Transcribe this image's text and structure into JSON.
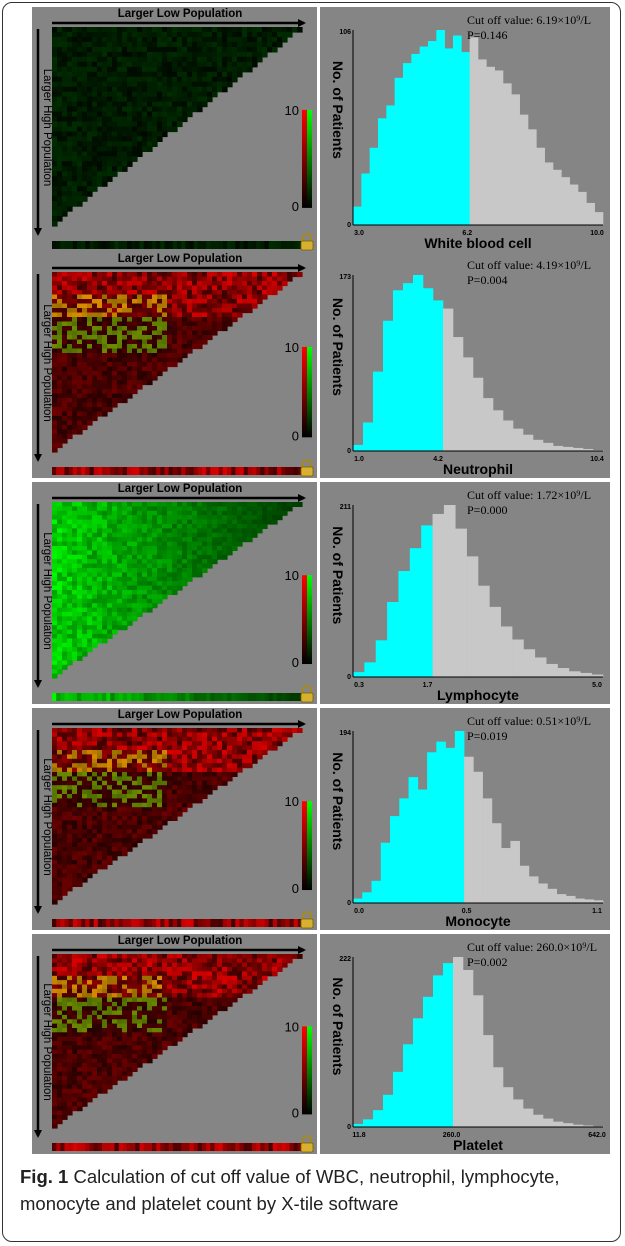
{
  "caption": {
    "label": "Fig. 1",
    "text": "Calculation of cut off value of WBC, neutrophil, lymphocyte, monocyte and platelet count by X-tile software"
  },
  "xtile_labels": {
    "top": "Larger Low Population",
    "left": "Larger High Population",
    "legend_max": "10",
    "legend_min": "0"
  },
  "colors": {
    "background": "#858585",
    "below_cutoff": "#00ffff",
    "above_cutoff": "#c8c8c8",
    "legend_high": "#ff0000",
    "legend_low": "#00ff00"
  },
  "chart_data": [
    {
      "type": "bar",
      "title": "White blood cell",
      "ylabel": "No. of Patients",
      "ymax_label": "106",
      "ymin_label": "0",
      "xticks": [
        "3.0",
        "6.2",
        "10.0"
      ],
      "xrange": [
        3.0,
        10.0
      ],
      "ymax": 106,
      "cutoff": 6.2,
      "annotation_lines": [
        "Cut off value: 6.19×10⁹/L",
        "P=0.146"
      ],
      "heat_color": "dark",
      "values": [
        10,
        28,
        42,
        58,
        65,
        80,
        88,
        93,
        97,
        100,
        106,
        96,
        103,
        94,
        102,
        90,
        86,
        84,
        77,
        71,
        60,
        52,
        42,
        34,
        30,
        26,
        22,
        18,
        12,
        7
      ]
    },
    {
      "type": "bar",
      "title": "Neutrophil",
      "ylabel": "No. of Patients",
      "ymax_label": "173",
      "ymin_label": "0",
      "xticks": [
        "1.0",
        "4.2",
        "10.4"
      ],
      "xrange": [
        1.0,
        10.4
      ],
      "ymax": 173,
      "cutoff": 4.2,
      "annotation_lines": [
        "Cut off value: 4.19×10⁹/L",
        "P=0.004"
      ],
      "heat_color": "red",
      "values": [
        6,
        28,
        78,
        128,
        158,
        165,
        173,
        160,
        148,
        140,
        112,
        92,
        72,
        52,
        40,
        30,
        22,
        16,
        11,
        8,
        5,
        4,
        3,
        2,
        1
      ]
    },
    {
      "type": "bar",
      "title": "Lymphocyte",
      "ylabel": "No. of Patients",
      "ymax_label": "211",
      "ymin_label": "0",
      "xticks": [
        "0.3",
        "1.7",
        "5.0"
      ],
      "xrange": [
        0.3,
        5.0
      ],
      "ymax": 211,
      "cutoff": 1.7,
      "annotation_lines": [
        "Cut off value: 1.72×10⁹/L",
        "P=0.000"
      ],
      "heat_color": "green",
      "values": [
        6,
        18,
        45,
        92,
        130,
        158,
        186,
        200,
        211,
        182,
        148,
        112,
        86,
        62,
        46,
        34,
        24,
        16,
        11,
        7,
        5,
        3
      ]
    },
    {
      "type": "bar",
      "title": "Monocyte",
      "ylabel": "No. of Patients",
      "ymax_label": "194",
      "ymin_label": "0",
      "xticks": [
        "0.0",
        "0.5",
        "1.1"
      ],
      "xrange": [
        0.0,
        1.1
      ],
      "ymax": 194,
      "cutoff": 0.5,
      "annotation_lines": [
        "Cut off value: 0.51×10⁹/L",
        "P=0.019"
      ],
      "heat_color": "red",
      "values": [
        5,
        12,
        25,
        68,
        98,
        118,
        142,
        128,
        170,
        182,
        175,
        194,
        165,
        148,
        118,
        90,
        62,
        70,
        42,
        30,
        22,
        16,
        10,
        8,
        5,
        4,
        3
      ]
    },
    {
      "type": "bar",
      "title": "Platelet",
      "ylabel": "No. of Patients",
      "ymax_label": "222",
      "ymin_label": "0",
      "xticks": [
        "11.8",
        "260.0",
        "642.0"
      ],
      "xrange": [
        11.8,
        642.0
      ],
      "ymax": 222,
      "cutoff": 260.0,
      "annotation_lines": [
        "Cut off value: 260.0×10⁹/L",
        "P=0.002"
      ],
      "heat_color": "red",
      "values": [
        4,
        10,
        22,
        42,
        72,
        108,
        142,
        170,
        198,
        214,
        222,
        205,
        172,
        120,
        78,
        52,
        36,
        24,
        16,
        11,
        7,
        5,
        3,
        2,
        1
      ]
    }
  ]
}
